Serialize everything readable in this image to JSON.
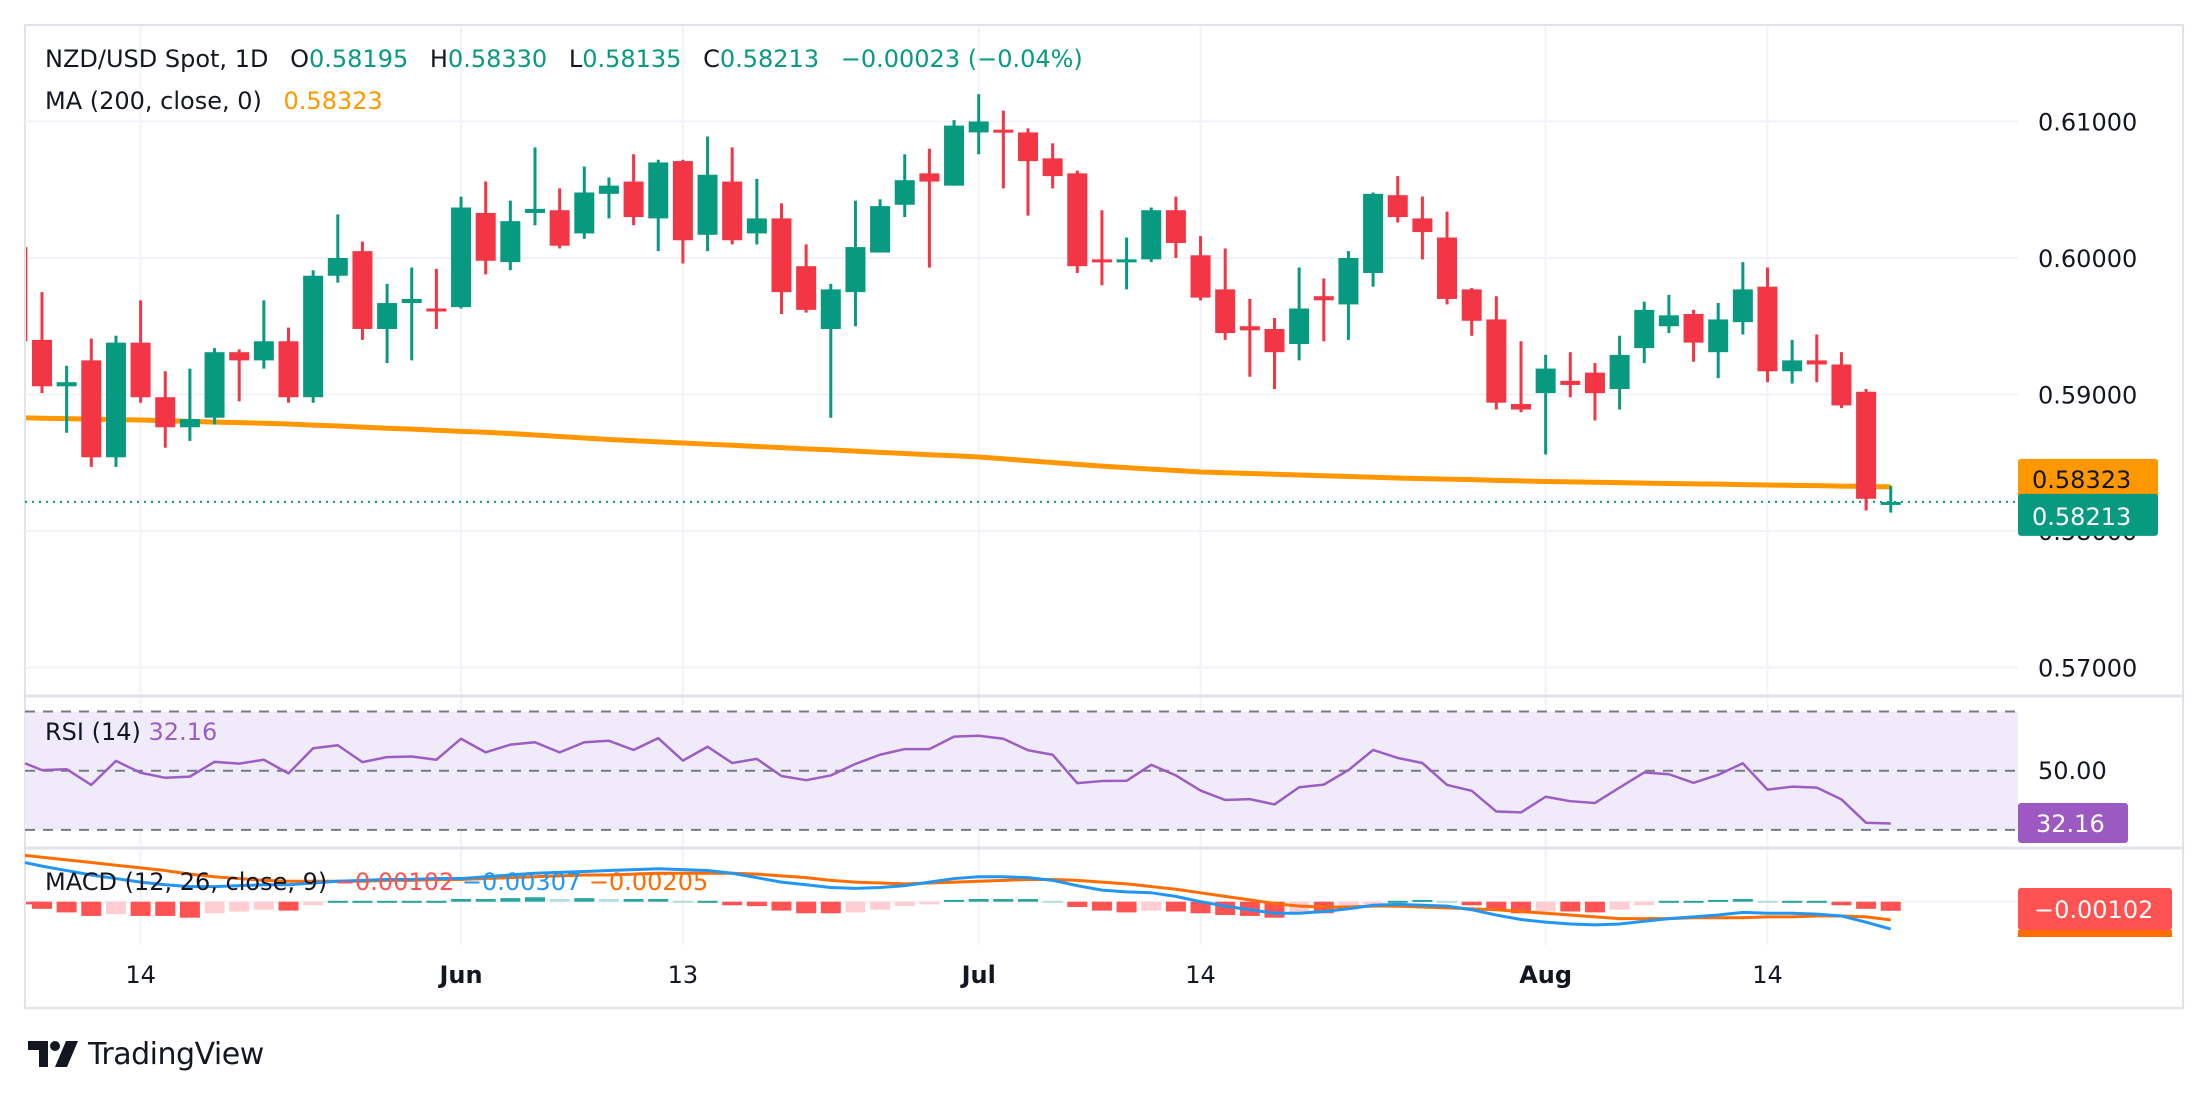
{
  "header": {
    "symbol": "NZD/USD Spot, 1D",
    "open_label": "O",
    "open": "0.58195",
    "high_label": "H",
    "high": "0.58330",
    "low_label": "L",
    "low": "0.58135",
    "close_label": "C",
    "close": "0.58213",
    "change": "−0.00023 (−0.04%)"
  },
  "ma_legend": {
    "label": "MA (200, close, 0)",
    "value": "0.58323"
  },
  "rsi_legend": {
    "label": "RSI (14)",
    "value": "32.16"
  },
  "macd_legend": {
    "label": "MACD (12, 26, close, 9)",
    "hist": "−0.00102",
    "macd": "−0.00307",
    "signal": "−0.00205"
  },
  "price_tags": {
    "ma": "0.58323",
    "close": "0.58213",
    "rsi": "32.16",
    "rsi_mid": "50.00",
    "macd": "−0.00102"
  },
  "colors": {
    "up": "#089981",
    "down": "#f23645",
    "ma": "#ff9800",
    "rsi": "#9c5ec4",
    "rsi_tag": "#9b59c1",
    "macd": "#2196f3",
    "signal": "#ff6d00",
    "hist_up_strong": "#26a69a",
    "hist_up_weak": "#b2dfdb",
    "hist_down_strong": "#ff5252",
    "hist_down_weak": "#ffcdd2"
  },
  "branding": {
    "logo_text": "TradingView"
  },
  "chart_data": {
    "type": "candlestick",
    "title": "NZD/USD Spot, 1D",
    "x_tick_labels": [
      "14",
      "Jun",
      "13",
      "Jul",
      "14",
      "Aug",
      "14"
    ],
    "x_tick_candle_index": [
      6,
      19,
      28,
      40,
      49,
      63,
      72
    ],
    "y_ticks": [
      0.61,
      0.6,
      0.59,
      0.58,
      0.57
    ],
    "y_tick_labels": [
      "0.61000",
      "0.60000",
      "0.59000",
      "0.58000",
      "0.57000"
    ],
    "ylim": [
      0.5655,
      0.6155
    ],
    "grid": true,
    "candles": [
      [
        0.6008,
        0.6008,
        0.5939,
        0.5939
      ],
      [
        0.594,
        0.5975,
        0.5901,
        0.5906
      ],
      [
        0.5906,
        0.5921,
        0.5872,
        0.5909
      ],
      [
        0.5925,
        0.5941,
        0.5847,
        0.5854
      ],
      [
        0.5854,
        0.5943,
        0.5847,
        0.5938
      ],
      [
        0.5938,
        0.5969,
        0.5894,
        0.5898
      ],
      [
        0.5898,
        0.5917,
        0.5861,
        0.5876
      ],
      [
        0.5876,
        0.5919,
        0.5866,
        0.5882
      ],
      [
        0.5883,
        0.5934,
        0.5878,
        0.5931
      ],
      [
        0.5931,
        0.5933,
        0.5895,
        0.5925
      ],
      [
        0.5925,
        0.5969,
        0.5919,
        0.5939
      ],
      [
        0.5939,
        0.5949,
        0.5894,
        0.5898
      ],
      [
        0.5898,
        0.5991,
        0.5894,
        0.5987
      ],
      [
        0.5987,
        0.6032,
        0.5982,
        0.6
      ],
      [
        0.6005,
        0.6012,
        0.594,
        0.5948
      ],
      [
        0.5948,
        0.5981,
        0.5923,
        0.5967
      ],
      [
        0.5967,
        0.5993,
        0.5925,
        0.597
      ],
      [
        0.5963,
        0.5992,
        0.5948,
        0.5961
      ],
      [
        0.5964,
        0.6045,
        0.5963,
        0.6037
      ],
      [
        0.6033,
        0.6056,
        0.5988,
        0.5998
      ],
      [
        0.5997,
        0.6042,
        0.5991,
        0.6027
      ],
      [
        0.6033,
        0.6081,
        0.6024,
        0.6036
      ],
      [
        0.6035,
        0.6051,
        0.6007,
        0.6009
      ],
      [
        0.6018,
        0.6067,
        0.6014,
        0.6048
      ],
      [
        0.6047,
        0.6059,
        0.6029,
        0.6053
      ],
      [
        0.6056,
        0.6076,
        0.6024,
        0.603
      ],
      [
        0.6029,
        0.6072,
        0.6005,
        0.607
      ],
      [
        0.6071,
        0.6072,
        0.5996,
        0.6013
      ],
      [
        0.6017,
        0.6089,
        0.6005,
        0.6061
      ],
      [
        0.6056,
        0.6081,
        0.601,
        0.6013
      ],
      [
        0.6018,
        0.6058,
        0.601,
        0.6029
      ],
      [
        0.6029,
        0.604,
        0.5959,
        0.5975
      ],
      [
        0.5994,
        0.601,
        0.596,
        0.5962
      ],
      [
        0.5948,
        0.5981,
        0.5883,
        0.5977
      ],
      [
        0.5975,
        0.6042,
        0.595,
        0.6008
      ],
      [
        0.6004,
        0.6043,
        0.6004,
        0.6038
      ],
      [
        0.6039,
        0.6076,
        0.603,
        0.6057
      ],
      [
        0.6062,
        0.608,
        0.5993,
        0.6056
      ],
      [
        0.6053,
        0.6101,
        0.6053,
        0.6097
      ],
      [
        0.6092,
        0.612,
        0.6076,
        0.61
      ],
      [
        0.6094,
        0.6108,
        0.6051,
        0.6092
      ],
      [
        0.6092,
        0.6095,
        0.6031,
        0.6071
      ],
      [
        0.6073,
        0.6084,
        0.6051,
        0.606
      ],
      [
        0.6062,
        0.6064,
        0.5989,
        0.5994
      ],
      [
        0.5999,
        0.6035,
        0.598,
        0.5998
      ],
      [
        0.5998,
        0.6015,
        0.5977,
        0.5999
      ],
      [
        0.5999,
        0.6037,
        0.5997,
        0.6035
      ],
      [
        0.6035,
        0.6045,
        0.6,
        0.6011
      ],
      [
        0.6002,
        0.6016,
        0.5969,
        0.5971
      ],
      [
        0.5977,
        0.6007,
        0.594,
        0.5945
      ],
      [
        0.595,
        0.597,
        0.5913,
        0.5947
      ],
      [
        0.5948,
        0.5956,
        0.5904,
        0.5931
      ],
      [
        0.5937,
        0.5993,
        0.5925,
        0.5963
      ],
      [
        0.5972,
        0.5985,
        0.5939,
        0.5969
      ],
      [
        0.5966,
        0.6005,
        0.594,
        0.6
      ],
      [
        0.5989,
        0.6048,
        0.5979,
        0.6047
      ],
      [
        0.6046,
        0.606,
        0.6026,
        0.603
      ],
      [
        0.6029,
        0.6045,
        0.5999,
        0.6019
      ],
      [
        0.6015,
        0.6034,
        0.5966,
        0.597
      ],
      [
        0.5977,
        0.5978,
        0.5943,
        0.5954
      ],
      [
        0.5955,
        0.5972,
        0.5889,
        0.5894
      ],
      [
        0.5893,
        0.5939,
        0.5887,
        0.5889
      ],
      [
        0.5901,
        0.5929,
        0.5856,
        0.5919
      ],
      [
        0.591,
        0.5931,
        0.5898,
        0.5907
      ],
      [
        0.5916,
        0.5923,
        0.5881,
        0.5901
      ],
      [
        0.5904,
        0.5943,
        0.5889,
        0.5929
      ],
      [
        0.5934,
        0.5968,
        0.5923,
        0.5962
      ],
      [
        0.595,
        0.5973,
        0.5945,
        0.5958
      ],
      [
        0.5959,
        0.5962,
        0.5924,
        0.5938
      ],
      [
        0.5931,
        0.5967,
        0.5912,
        0.5955
      ],
      [
        0.5953,
        0.5997,
        0.5944,
        0.5977
      ],
      [
        0.5979,
        0.5993,
        0.5909,
        0.5917
      ],
      [
        0.5917,
        0.594,
        0.5908,
        0.5925
      ],
      [
        0.5925,
        0.5944,
        0.5909,
        0.5922
      ],
      [
        0.5922,
        0.5931,
        0.589,
        0.5892
      ],
      [
        0.5902,
        0.5904,
        0.5815,
        0.58236
      ],
      [
        0.58195,
        0.5833,
        0.58135,
        0.58213
      ]
    ],
    "candle_fields": [
      "open",
      "high",
      "low",
      "close"
    ],
    "ma200": [
      0.58829,
      0.58826,
      0.58823,
      0.5882,
      0.58816,
      0.58813,
      0.58808,
      0.58803,
      0.58798,
      0.58794,
      0.58789,
      0.58784,
      0.58776,
      0.58769,
      0.58761,
      0.58753,
      0.58746,
      0.58738,
      0.5873,
      0.58723,
      0.58714,
      0.58703,
      0.58692,
      0.58681,
      0.5867,
      0.58662,
      0.58653,
      0.58645,
      0.58636,
      0.58628,
      0.58619,
      0.58611,
      0.58602,
      0.58594,
      0.58585,
      0.58576,
      0.58568,
      0.58559,
      0.58551,
      0.58542,
      0.58529,
      0.58515,
      0.58502,
      0.58488,
      0.58475,
      0.58464,
      0.58453,
      0.58443,
      0.58432,
      0.58427,
      0.58421,
      0.58416,
      0.5841,
      0.58405,
      0.58399,
      0.58394,
      0.58388,
      0.58384,
      0.5838,
      0.58376,
      0.58371,
      0.58367,
      0.58363,
      0.5836,
      0.58357,
      0.58354,
      0.58351,
      0.58348,
      0.58345,
      0.58343,
      0.5834,
      0.58337,
      0.58334,
      0.58332,
      0.58329,
      0.58326,
      0.58323
    ],
    "last_close": 0.58213,
    "rsi": {
      "period": 14,
      "levels": [
        70,
        50,
        30
      ],
      "ylim": [
        20,
        75
      ],
      "axis_labels": [
        "50.00"
      ],
      "values": [
        52.5,
        50.2,
        50.5,
        45.2,
        53.3,
        49.3,
        47.6,
        48.0,
        53.0,
        52.4,
        53.7,
        49.1,
        57.6,
        58.6,
        52.9,
        54.6,
        54.8,
        53.7,
        60.8,
        56.2,
        58.8,
        59.6,
        56.2,
        59.6,
        60.1,
        57.0,
        61.0,
        53.4,
        58.1,
        52.6,
        54.0,
        48.2,
        46.8,
        48.4,
        52.3,
        55.4,
        57.3,
        57.3,
        61.5,
        61.8,
        60.8,
        56.9,
        55.4,
        45.8,
        46.5,
        46.6,
        52.0,
        48.4,
        43.3,
        40.1,
        40.4,
        38.6,
        44.4,
        45.3,
        50.2,
        57.0,
        54.3,
        52.6,
        45.2,
        43.2,
        36.2,
        35.9,
        41.2,
        39.7,
        39.1,
        44.3,
        49.4,
        48.8,
        45.9,
        48.6,
        52.5,
        43.6,
        44.6,
        44.3,
        40.3,
        32.4,
        32.16
      ]
    },
    "macd": {
      "params": [
        12,
        26,
        9
      ],
      "macd": [
        0.0044,
        0.004,
        0.0035,
        0.003,
        0.0026,
        0.0022,
        0.0019,
        0.0017,
        0.0017,
        0.0018,
        0.0019,
        0.0019,
        0.0021,
        0.0023,
        0.0024,
        0.0025,
        0.0025,
        0.0026,
        0.0026,
        0.0028,
        0.003,
        0.0032,
        0.0033,
        0.0034,
        0.0035,
        0.0036,
        0.0037,
        0.0036,
        0.0035,
        0.0032,
        0.0027,
        0.0022,
        0.0019,
        0.0016,
        0.0015,
        0.0016,
        0.0018,
        0.0022,
        0.0026,
        0.0028,
        0.0028,
        0.0027,
        0.0024,
        0.0018,
        0.0013,
        0.0011,
        0.001,
        0.0006,
        0.0,
        -0.0005,
        -0.0009,
        -0.0013,
        -0.0013,
        -0.0011,
        -0.0008,
        -0.0004,
        -0.0003,
        -0.0004,
        -0.0005,
        -0.0009,
        -0.0015,
        -0.002,
        -0.0023,
        -0.0025,
        -0.0026,
        -0.0025,
        -0.0022,
        -0.0019,
        -0.0017,
        -0.0015,
        -0.0012,
        -0.0013,
        -0.0013,
        -0.0014,
        -0.0016,
        -0.0023,
        -0.00307
      ],
      "signal": [
        0.0052,
        0.005,
        0.0047,
        0.0044,
        0.0041,
        0.0038,
        0.0035,
        0.0031,
        0.0028,
        0.0026,
        0.0024,
        0.0023,
        0.0023,
        0.0023,
        0.0023,
        0.0024,
        0.0024,
        0.0025,
        0.0025,
        0.0026,
        0.0027,
        0.0028,
        0.0029,
        0.003,
        0.003,
        0.0031,
        0.0032,
        0.0032,
        0.0032,
        0.0032,
        0.0031,
        0.0029,
        0.0027,
        0.0024,
        0.0022,
        0.0021,
        0.002,
        0.0021,
        0.0022,
        0.0023,
        0.0024,
        0.0025,
        0.0025,
        0.0024,
        0.0022,
        0.002,
        0.0017,
        0.0014,
        0.001,
        0.0006,
        0.0002,
        -0.0002,
        -0.0005,
        -0.0006,
        -0.0006,
        -0.0005,
        -0.0005,
        -0.0006,
        -0.0007,
        -0.0008,
        -0.0009,
        -0.0011,
        -0.0013,
        -0.0015,
        -0.0017,
        -0.0019,
        -0.0019,
        -0.0019,
        -0.0018,
        -0.0018,
        -0.0018,
        -0.0017,
        -0.0017,
        -0.0016,
        -0.0016,
        -0.0017,
        -0.00205
      ],
      "histogram": [
        -0.0003,
        -0.0008,
        -0.0012,
        -0.0016,
        -0.0014,
        -0.0016,
        -0.0016,
        -0.0018,
        -0.0013,
        -0.0011,
        -0.0009,
        -0.001,
        -0.0004,
        0.0001,
        0.0001,
        0.0001,
        0.0001,
        0.0001,
        0.0003,
        0.0003,
        0.0004,
        0.0005,
        0.0003,
        0.0004,
        0.0003,
        0.0003,
        0.0003,
        0.0001,
        0.0001,
        -0.0004,
        -0.0005,
        -0.001,
        -0.0013,
        -0.0013,
        -0.0012,
        -0.0009,
        -0.0005,
        -0.0003,
        0.0002,
        0.0003,
        0.0003,
        0.0003,
        0.0001,
        -0.0006,
        -0.001,
        -0.0012,
        -0.001,
        -0.0011,
        -0.0013,
        -0.0015,
        -0.0016,
        -0.0018,
        -0.0013,
        -0.0013,
        -0.0009,
        -0.0003,
        0.0001,
        0.0002,
        0.0001,
        -0.0004,
        -0.0009,
        -0.0013,
        -0.0011,
        -0.0011,
        -0.0012,
        -0.0009,
        -0.0004,
        0.0001,
        0.0001,
        0.0002,
        0.0003,
        0.0001,
        0.0001,
        0.0001,
        -0.0004,
        -0.0008,
        -0.00102
      ]
    }
  }
}
